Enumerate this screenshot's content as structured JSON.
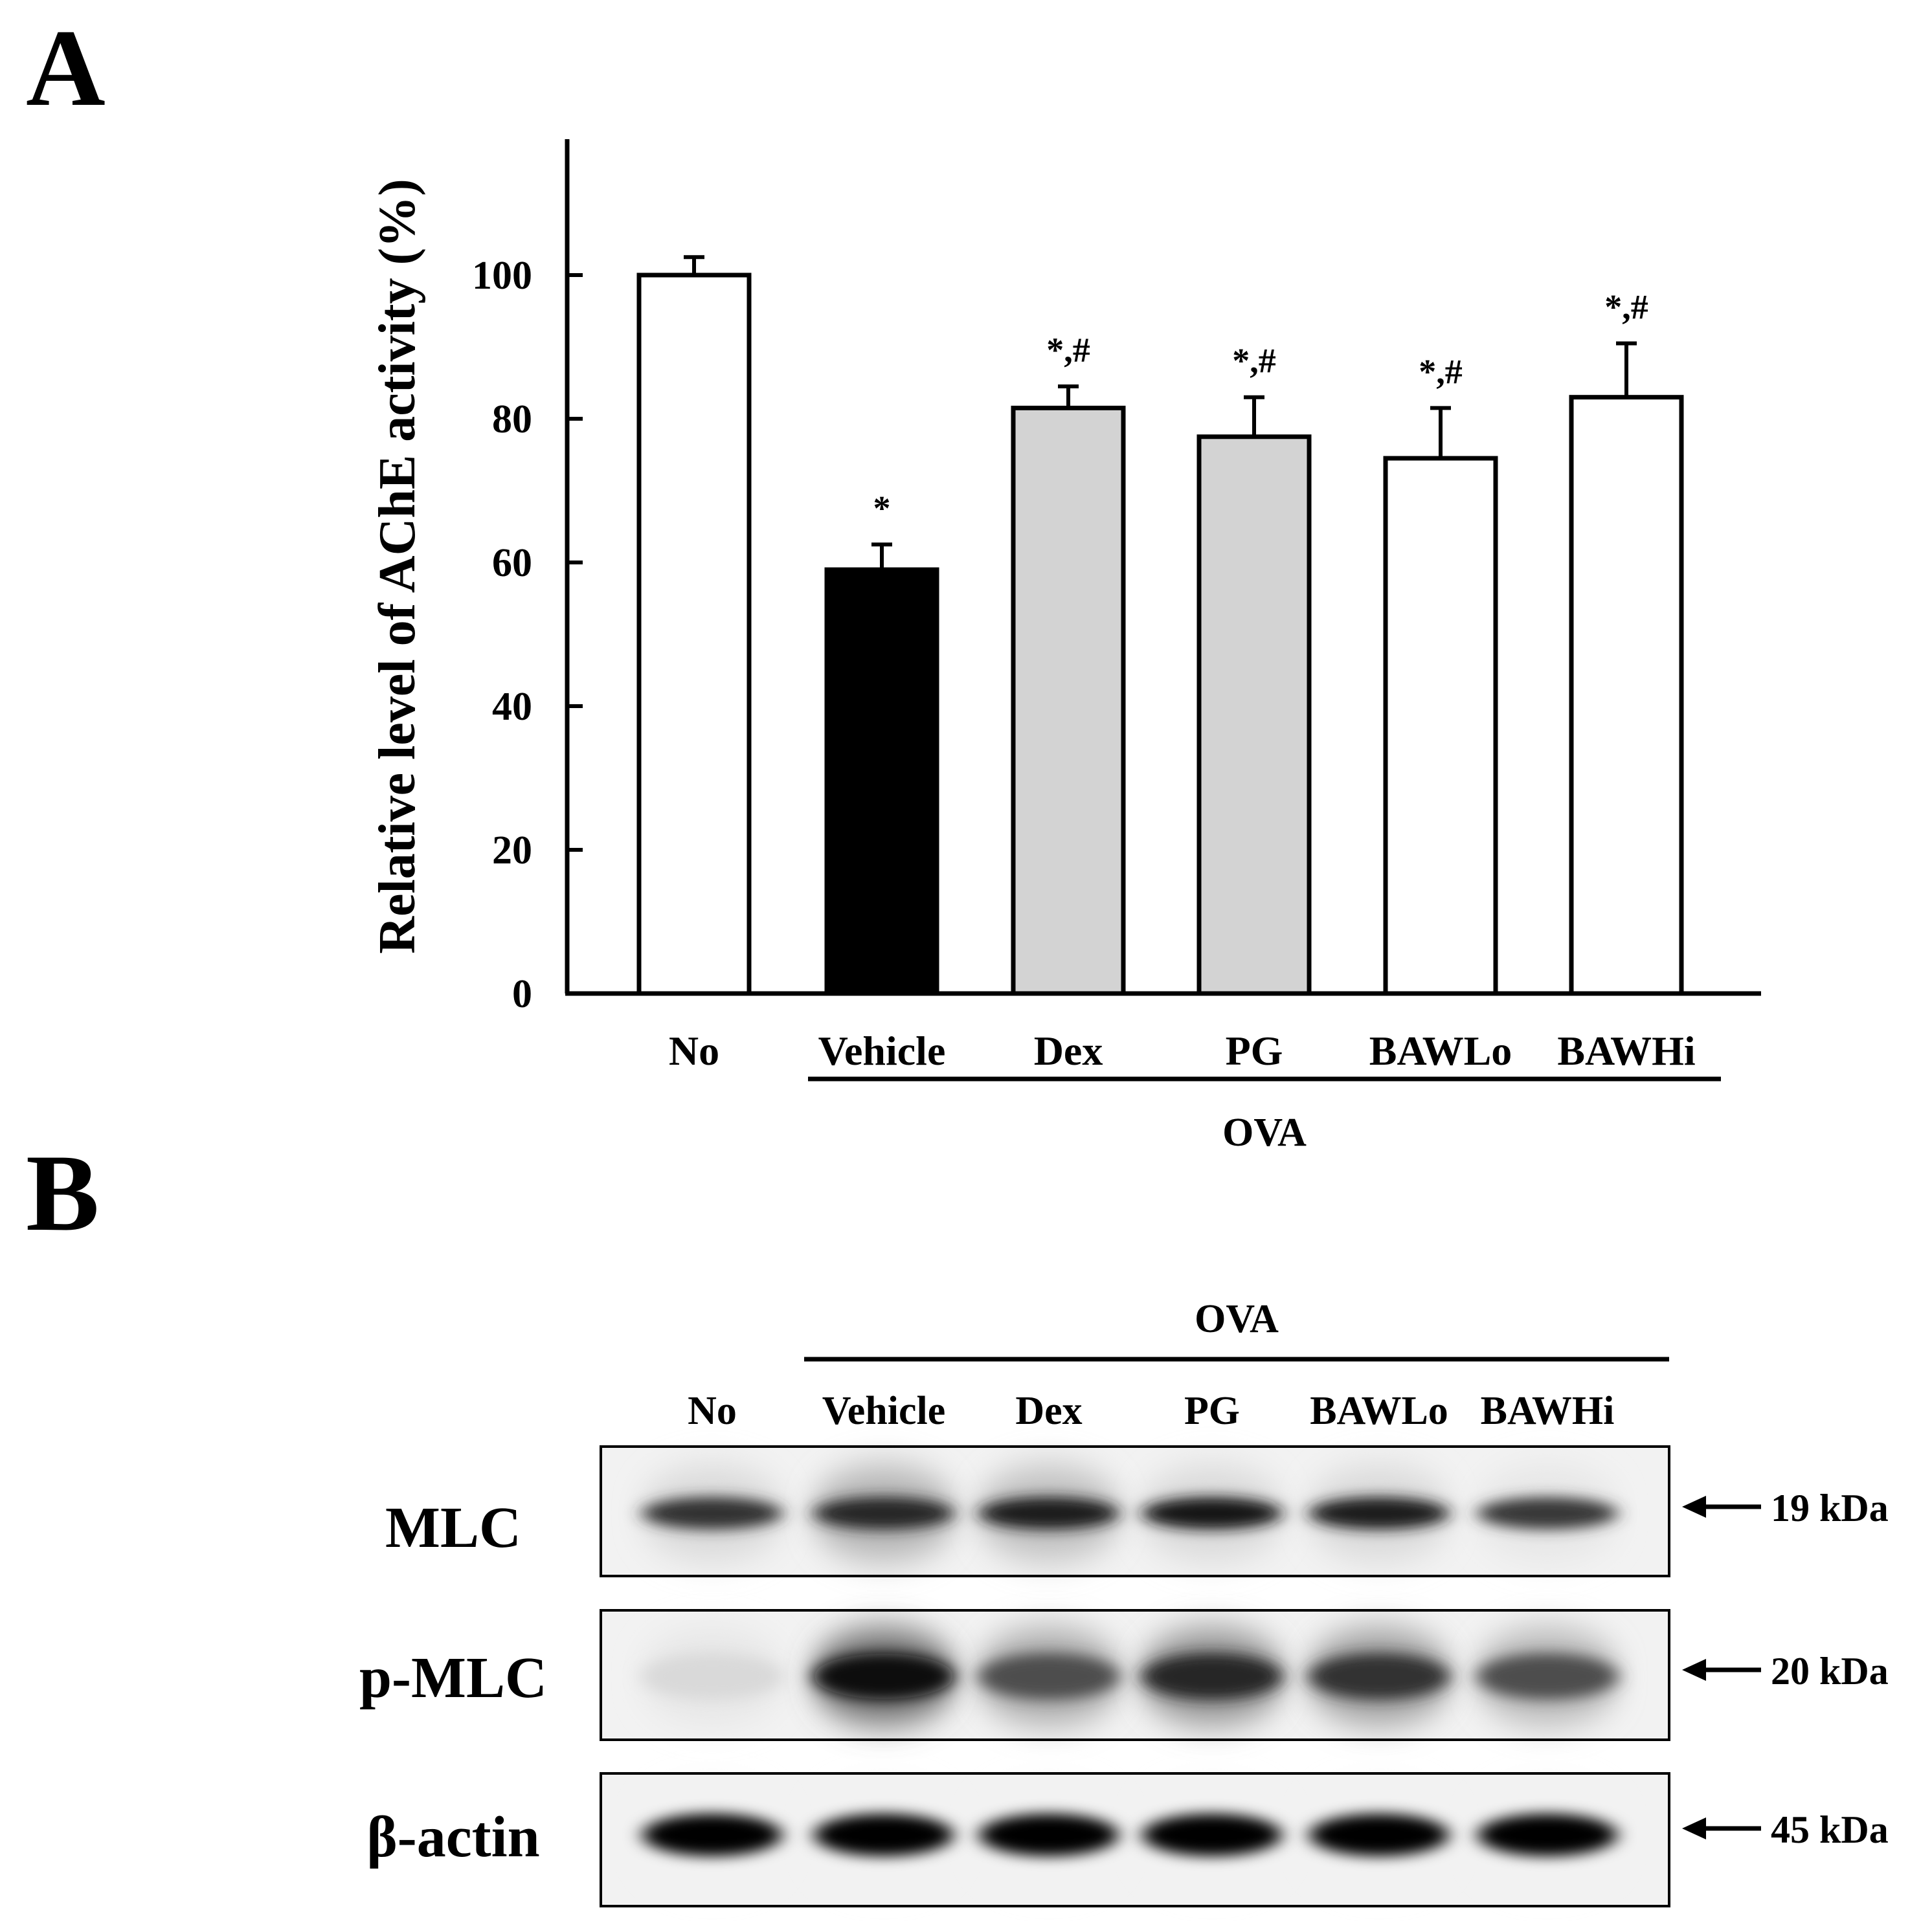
{
  "panel_a": {
    "label": "A"
  },
  "panel_b": {
    "label": "B"
  },
  "chart_data": {
    "type": "bar",
    "title": "",
    "xlabel": "",
    "ylabel": "Relative level of AChE activity (%)",
    "ylim": [
      0,
      120
    ],
    "yticks": [
      0,
      20,
      40,
      60,
      80,
      100
    ],
    "grid": false,
    "categories": [
      "No",
      "Vehicle",
      "Dex",
      "PG",
      "BAWLo",
      "BAWHi"
    ],
    "values": [
      100,
      59,
      81.5,
      77.5,
      74.5,
      83
    ],
    "errors": [
      2.5,
      3.5,
      3,
      5.5,
      7,
      7.5
    ],
    "significance": [
      "",
      "*",
      "*,#",
      "*,#",
      "*,#",
      "*,#"
    ],
    "bar_colors": [
      "#ffffff",
      "#000000",
      "#d3d3d3",
      "#d3d3d3",
      "#ffffff",
      "#ffffff"
    ],
    "group_label": "OVA"
  },
  "blot": {
    "group_label": "OVA",
    "lanes": [
      "No",
      "Vehicle",
      "Dex",
      "PG",
      "BAWLo",
      "BAWHi"
    ],
    "rows": [
      {
        "name": "MLC",
        "size": "19 kDa",
        "intensity": [
          0.8,
          0.85,
          0.88,
          0.92,
          0.88,
          0.78
        ],
        "smear": [
          0.15,
          0.3,
          0.25,
          0.15,
          0.15,
          0.1
        ]
      },
      {
        "name": "p-MLC",
        "size": "20 kDa",
        "intensity": [
          0.15,
          0.95,
          0.7,
          0.85,
          0.8,
          0.7
        ],
        "smear": [
          0.1,
          0.6,
          0.35,
          0.45,
          0.4,
          0.3
        ]
      },
      {
        "name": "β-actin",
        "size": "45 kDa",
        "intensity": [
          0.98,
          0.98,
          0.98,
          0.98,
          0.98,
          0.98
        ],
        "smear": [
          0.05,
          0.05,
          0.05,
          0.05,
          0.05,
          0.05
        ]
      }
    ]
  }
}
